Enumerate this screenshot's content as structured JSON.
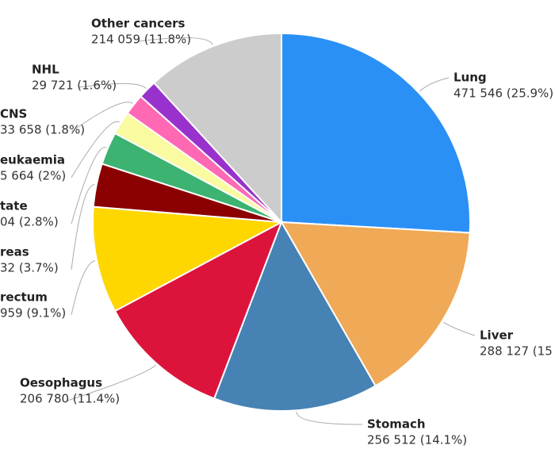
{
  "chart_data": {
    "type": "pie",
    "categories": [
      "Lung",
      "Liver",
      "Stomach",
      "Oesophagus",
      "rectum",
      "reas",
      "tate",
      "eukaemia",
      "CNS",
      "NHL",
      "Other cancers"
    ],
    "values": [
      25.9,
      15.8,
      14.1,
      11.4,
      9.1,
      3.7,
      2.8,
      2,
      1.8,
      1.6,
      11.8
    ],
    "value_labels": [
      "471 546 (25.9%)",
      "288 127 (15",
      "256 512 (14.1%)",
      "206 780 (11.4%)",
      "959 (9.1%)",
      "32 (3.7%)",
      "04 (2.8%)",
      "5 664 (2%)",
      "33 658 (1.8%)",
      "29 721 (1.6%)",
      "214 059 (11.8%)"
    ],
    "colors": [
      "#2b90f5",
      "#f0a957",
      "#4682b4",
      "#dc143c",
      "#ffd700",
      "#8b0000",
      "#3cb371",
      "#fafaa0",
      "#ff69b4",
      "#9932cc",
      "#cccccc"
    ]
  }
}
